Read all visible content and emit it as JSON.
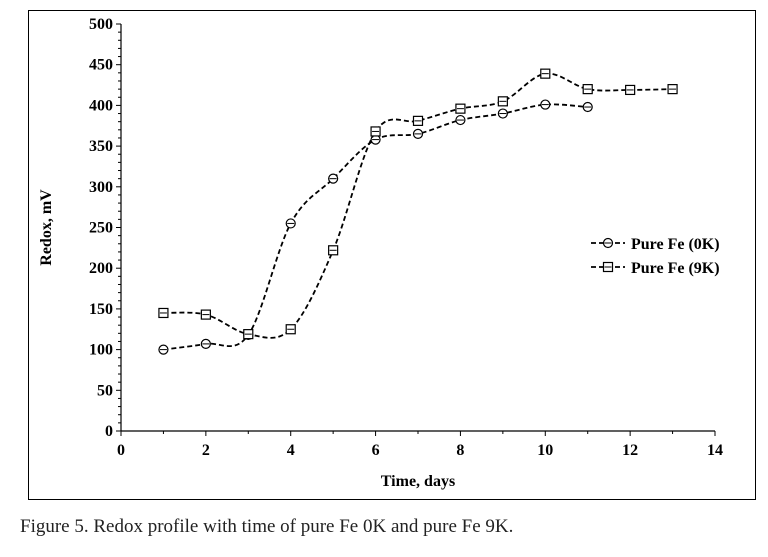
{
  "caption": "Figure 5. Redox profile with time of pure Fe 0K and pure Fe 9K.",
  "chart_data": {
    "type": "line",
    "xlabel": "Time, days",
    "ylabel": "Redox, mV",
    "xlim": [
      0,
      14
    ],
    "ylim": [
      0,
      500
    ],
    "xticks": [
      0,
      2,
      4,
      6,
      8,
      10,
      12,
      14
    ],
    "yticks": [
      0,
      50,
      100,
      150,
      200,
      250,
      300,
      350,
      400,
      450,
      500
    ],
    "grid": false,
    "legend_position": "right",
    "line_style": "dashed, smoothed",
    "series": [
      {
        "name": "Pure Fe (0K)",
        "marker": "circle",
        "color": "#000000",
        "x": [
          1,
          2,
          3,
          4,
          5,
          6,
          7,
          8,
          9,
          10,
          11
        ],
        "y": [
          100,
          107,
          118,
          255,
          310,
          358,
          365,
          382,
          390,
          401,
          398
        ]
      },
      {
        "name": "Pure Fe (9K)",
        "marker": "square",
        "color": "#000000",
        "x": [
          1,
          2,
          3,
          4,
          5,
          6,
          7,
          8,
          9,
          10,
          11,
          12,
          13
        ],
        "y": [
          145,
          143,
          119,
          125,
          222,
          368,
          381,
          396,
          405,
          439,
          420,
          419,
          420
        ]
      }
    ]
  }
}
